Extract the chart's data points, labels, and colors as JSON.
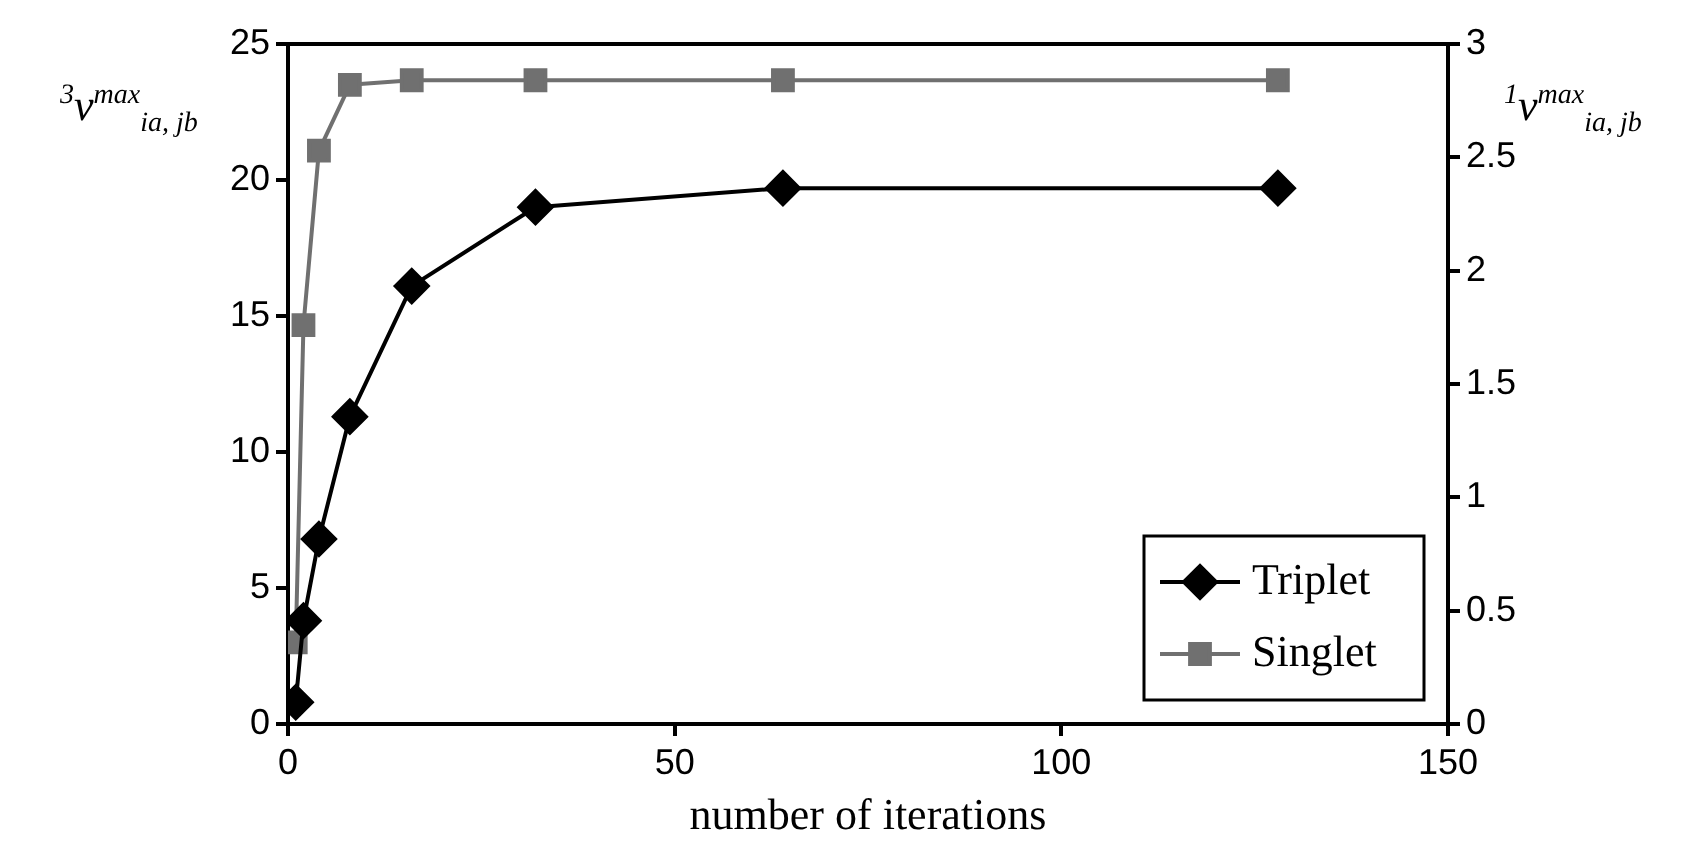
{
  "chart_data": {
    "type": "line",
    "xlabel": "number of iterations",
    "ylabel": "$^{3}$v$^{max}$$_{ia, jb}$",
    "y2label": "$^{1}$v$^{max}$$_{ia, jb}$",
    "x": [
      1,
      2,
      4,
      8,
      16,
      32,
      64,
      128
    ],
    "series": [
      {
        "name": "Triplet",
        "color": "#000000",
        "marker": "diamond",
        "values": [
          0.8,
          3.8,
          6.8,
          11.3,
          16.1,
          19.0,
          19.7,
          19.7
        ]
      },
      {
        "name": "Singlet",
        "color": "#707070",
        "marker": "square",
        "axis": "y2",
        "values": [
          0.36,
          1.76,
          2.53,
          2.82,
          2.84,
          2.84,
          2.84,
          2.84
        ]
      }
    ],
    "xlim": [
      0,
      150
    ],
    "xticks": [
      0,
      50,
      100,
      150
    ],
    "ylim": [
      0,
      25
    ],
    "yticks": [
      0,
      5,
      10,
      15,
      20,
      25
    ],
    "y2lim": [
      0,
      3
    ],
    "y2ticks": [
      0,
      0.5,
      1,
      1.5,
      2,
      2.5,
      3
    ],
    "grid": false,
    "legend": "bottom right",
    "line_style": "solid"
  }
}
